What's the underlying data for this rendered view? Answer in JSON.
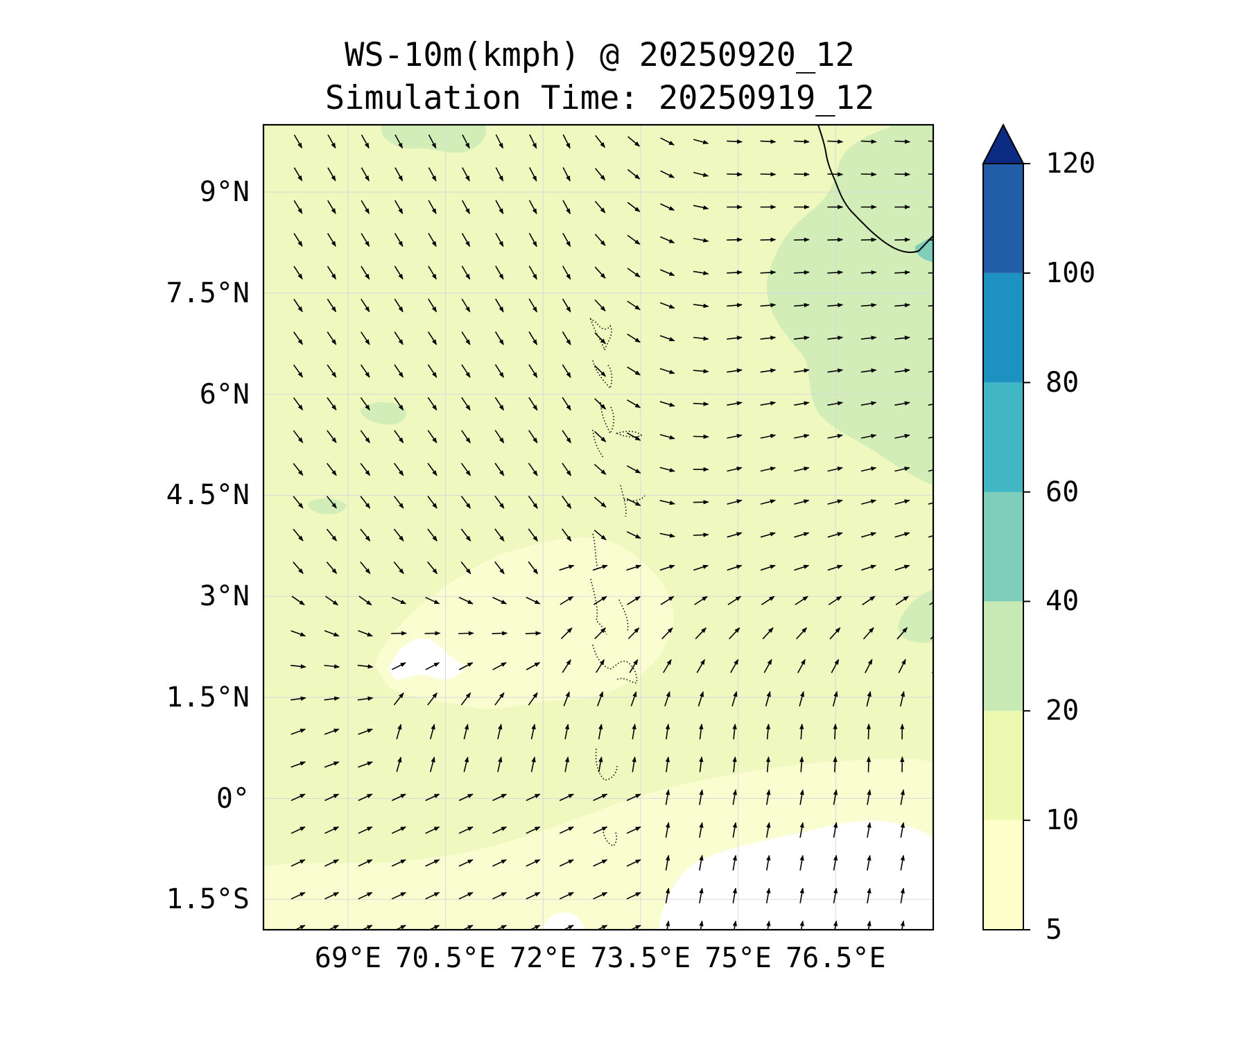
{
  "title": "WS-10m(kmph) @ 20250920_12",
  "subtitle": "Simulation Time: 20250919_12",
  "map": {
    "lon_range": [
      67.7,
      78.0
    ],
    "lat_range": [
      -1.95,
      10.0
    ],
    "lat_ticks": [
      {
        "value": 9,
        "label": "9°N"
      },
      {
        "value": 7.5,
        "label": "7.5°N"
      },
      {
        "value": 6,
        "label": "6°N"
      },
      {
        "value": 4.5,
        "label": "4.5°N"
      },
      {
        "value": 3,
        "label": "3°N"
      },
      {
        "value": 1.5,
        "label": "1.5°N"
      },
      {
        "value": 0,
        "label": "0°"
      },
      {
        "value": -1.5,
        "label": "1.5°S"
      }
    ],
    "lon_ticks": [
      {
        "value": 69,
        "label": "69°E"
      },
      {
        "value": 70.5,
        "label": "70.5°E"
      },
      {
        "value": 72,
        "label": "72°E"
      },
      {
        "value": 73.5,
        "label": "73.5°E"
      },
      {
        "value": 75,
        "label": "75°E"
      },
      {
        "value": 76.5,
        "label": "76.5°E"
      }
    ],
    "grid": true,
    "vectors": "wind vectors (arrows) over the whole domain"
  },
  "colorbar": {
    "levels": [
      5,
      10,
      20,
      40,
      60,
      80,
      100,
      120
    ],
    "labels": [
      "5",
      "10",
      "20",
      "40",
      "60",
      "80",
      "100",
      "120"
    ],
    "colors": [
      "#ffffcc",
      "#edf8b1",
      "#c7e9b4",
      "#7fcdbb",
      "#41b6c4",
      "#1d91c0",
      "#225ea8",
      "#0c2c84"
    ],
    "extend": "max"
  },
  "colors": {
    "below_5": "#ffffff",
    "band_5_10": "#fafdd0",
    "band_10_20": "#eef8bf",
    "band_20_40": "#d3edb8",
    "band_40_60": "#7fcdbb"
  }
}
